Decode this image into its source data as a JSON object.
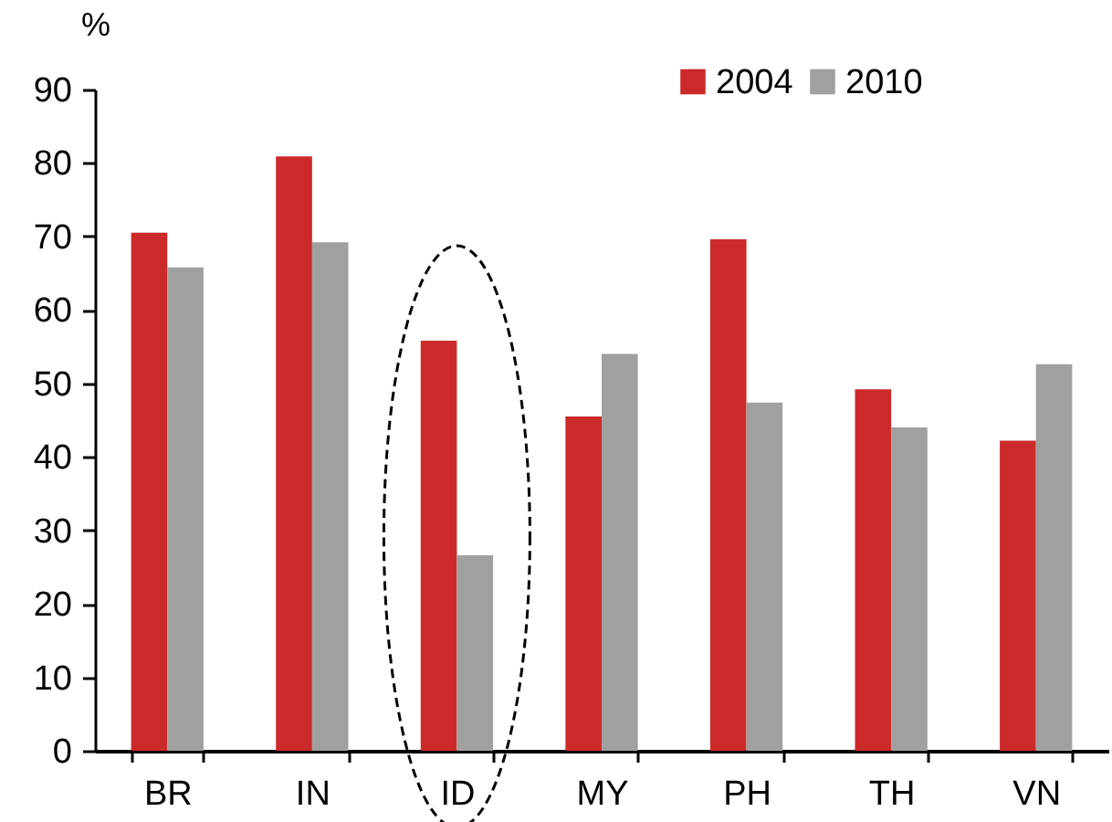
{
  "chart_data": {
    "type": "bar",
    "ylabel": "%",
    "categories": [
      "BR",
      "IN",
      "ID",
      "MY",
      "PH",
      "TH",
      "VN"
    ],
    "series": [
      {
        "name": "2004",
        "color": "#cc2a2a",
        "values": [
          70.5,
          80.9,
          55.8,
          45.5,
          69.6,
          49.2,
          42.2
        ]
      },
      {
        "name": "2010",
        "color": "#a0a0a0",
        "values": [
          65.8,
          69.2,
          26.6,
          54.0,
          47.4,
          44.0,
          52.6
        ]
      }
    ],
    "ylim": [
      0,
      90
    ],
    "yticks": [
      0,
      10,
      20,
      30,
      40,
      50,
      60,
      70,
      80,
      90
    ],
    "grid": false,
    "legend": "top right"
  }
}
